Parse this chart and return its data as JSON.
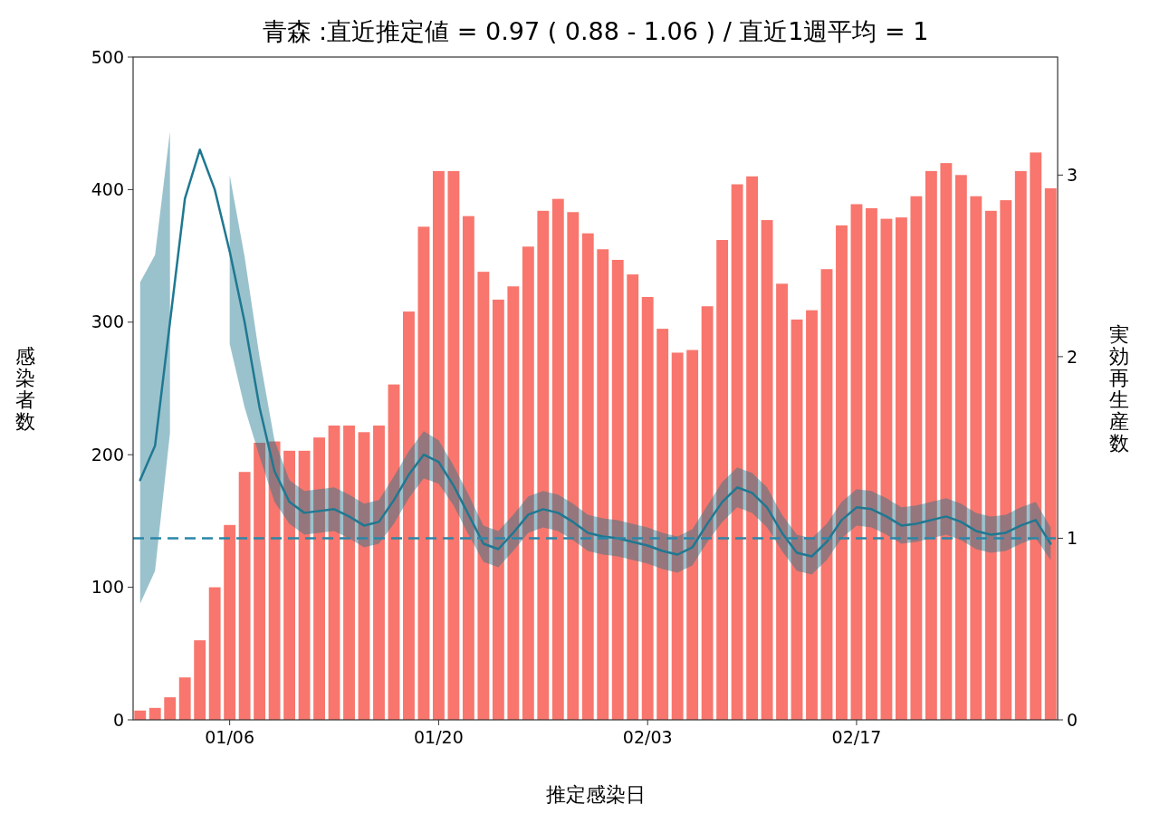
{
  "chart_data": {
    "type": "bar",
    "title": "青森 :直近推定値 = 0.97 ( 0.88 - 1.06 ) / 直近1週平均 = 1",
    "xlabel": "推定感染日",
    "ylabel": "感染者数",
    "y2label": "実効再生産数",
    "categories": [
      null,
      null,
      null,
      null,
      null,
      null,
      "01/06",
      null,
      null,
      null,
      null,
      null,
      null,
      null,
      null,
      null,
      null,
      null,
      null,
      null,
      "01/20",
      null,
      null,
      null,
      null,
      null,
      null,
      null,
      null,
      null,
      null,
      null,
      null,
      null,
      "02/03",
      null,
      null,
      null,
      null,
      null,
      null,
      null,
      null,
      null,
      null,
      null,
      null,
      null,
      "02/17",
      null,
      null,
      null,
      null,
      null,
      null,
      null,
      null,
      null,
      null,
      null,
      null,
      null
    ],
    "series": [
      {
        "color": "#f8766d",
        "values": [
          7,
          9,
          17,
          32,
          60,
          100,
          147,
          187,
          209,
          210,
          203,
          203,
          213,
          222,
          222,
          217,
          222,
          253,
          308,
          372,
          414,
          414,
          380,
          338,
          317,
          327,
          357,
          384,
          393,
          383,
          367,
          355,
          347,
          336,
          319,
          295,
          277,
          279,
          312,
          362,
          404,
          410,
          377,
          329,
          302,
          309,
          340,
          373,
          389,
          386,
          378,
          379,
          395,
          414,
          420,
          411,
          395,
          384,
          392,
          414,
          428,
          401
        ]
      },
      {
        "type": "line",
        "axis": "y2",
        "color": "#1f7891",
        "values": [
          1.32,
          1.51,
          2.19,
          2.87,
          3.14,
          2.92,
          2.58,
          2.19,
          1.72,
          1.37,
          1.2,
          1.14,
          1.15,
          1.16,
          1.12,
          1.07,
          1.09,
          1.21,
          1.35,
          1.46,
          1.42,
          1.29,
          1.13,
          0.97,
          0.94,
          1.03,
          1.13,
          1.16,
          1.14,
          1.09,
          1.03,
          1.01,
          1,
          0.98,
          0.96,
          0.93,
          0.91,
          0.95,
          1.08,
          1.2,
          1.28,
          1.25,
          1.17,
          1.03,
          0.92,
          0.9,
          0.98,
          1.1,
          1.17,
          1.16,
          1.12,
          1.07,
          1.08,
          1.1,
          1.12,
          1.09,
          1.04,
          1.02,
          1.03,
          1.07,
          1.1,
          0.97
        ],
        "lower": [
          0.64,
          0.82,
          1.58,
          null,
          null,
          null,
          2.07,
          1.72,
          1.45,
          1.2,
          1.08,
          1.02,
          1.03,
          1.04,
          1,
          0.95,
          0.97,
          1.08,
          1.22,
          1.33,
          1.3,
          1.18,
          1.02,
          0.87,
          0.84,
          0.93,
          1.03,
          1.06,
          1.04,
          0.99,
          0.93,
          0.91,
          0.9,
          0.88,
          0.86,
          0.83,
          0.81,
          0.85,
          0.98,
          1.09,
          1.17,
          1.14,
          1.06,
          0.93,
          0.82,
          0.8,
          0.88,
          1,
          1.07,
          1.06,
          1.02,
          0.97,
          0.98,
          1,
          1.02,
          0.99,
          0.94,
          0.92,
          0.93,
          0.97,
          1,
          0.88
        ],
        "upper": [
          2.41,
          2.56,
          3.24,
          null,
          null,
          null,
          3,
          2.55,
          2,
          1.54,
          1.32,
          1.26,
          1.27,
          1.28,
          1.24,
          1.19,
          1.21,
          1.34,
          1.48,
          1.59,
          1.54,
          1.4,
          1.24,
          1.07,
          1.04,
          1.13,
          1.23,
          1.26,
          1.24,
          1.19,
          1.13,
          1.11,
          1.1,
          1.08,
          1.06,
          1.03,
          1.01,
          1.05,
          1.18,
          1.31,
          1.39,
          1.36,
          1.28,
          1.13,
          1.02,
          1,
          1.08,
          1.2,
          1.27,
          1.26,
          1.22,
          1.17,
          1.18,
          1.2,
          1.22,
          1.19,
          1.14,
          1.12,
          1.13,
          1.17,
          1.2,
          1.06
        ]
      }
    ],
    "ylim": [
      0,
      500
    ],
    "yticks": [
      0,
      100,
      200,
      300,
      400,
      500
    ],
    "y2lim": [
      0,
      3.65
    ],
    "y2ticks": [
      0,
      1,
      2,
      3
    ],
    "ref_lines": [
      {
        "axis": "y2",
        "value": 1,
        "color": "#2b87a8",
        "line_style": "dashed"
      }
    ]
  }
}
